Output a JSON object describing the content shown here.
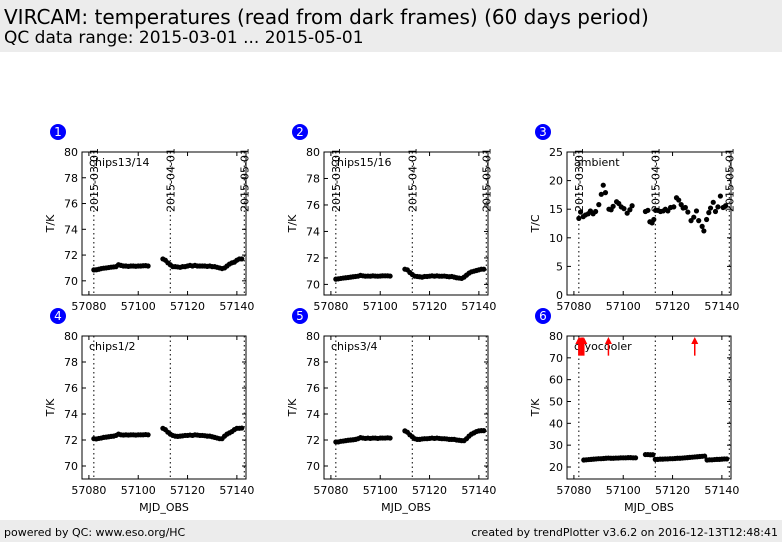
{
  "header": {
    "title": "VIRCAM: temperatures (read from dark frames) (60 days period)",
    "subtitle": "QC data range: 2015-03-01 ... 2015-05-01"
  },
  "footer": {
    "left": "powered by QC: www.eso.org/HC",
    "right": "created by trendPlotter v3.6.2 on 2016-12-13T12:48:41"
  },
  "colors": {
    "badge": "#0000ff",
    "points": "#000000",
    "outlier": "#ff0000",
    "band": "#ececec"
  },
  "date_markers": [
    {
      "label": "2015-03-01",
      "mjd": 57082
    },
    {
      "label": "2015-04-01",
      "mjd": 57113
    },
    {
      "label": "2015-05-01",
      "mjd": 57143
    }
  ],
  "chart_data": [
    {
      "type": "scatter",
      "badge": "1",
      "label": "chips13/14",
      "ylabel": "T/K",
      "xlabel": "",
      "xlim": [
        57077.2,
        57143.7
      ],
      "ylim": [
        68.9,
        80
      ],
      "xticks": [
        "57080",
        "57100",
        "57120",
        "57140"
      ],
      "yticks": [
        "70",
        "72",
        "74",
        "76",
        "78",
        "80"
      ],
      "segments": [
        {
          "x0": 57082,
          "step": 1,
          "y": [
            70.85,
            70.86,
            70.9,
            70.95,
            70.98,
            71.0,
            71.03,
            71.06,
            71.08,
            71.1,
            71.25,
            71.2,
            71.15,
            71.15,
            71.12,
            71.15,
            71.15,
            71.13,
            71.15,
            71.15,
            71.17,
            71.18,
            71.15
          ]
        },
        {
          "x0": 57110,
          "step": 1,
          "y": [
            71.7,
            71.6,
            71.4,
            71.25,
            71.1,
            71.1,
            71.08,
            71.05,
            71.1,
            71.1,
            71.15,
            71.2,
            71.15,
            71.2,
            71.15,
            71.15,
            71.15,
            71.15,
            71.12,
            71.15,
            71.1,
            71.1,
            71.05,
            71.0,
            70.95,
            71.0,
            71.15,
            71.3,
            71.4,
            71.45,
            71.6,
            71.7,
            71.7
          ]
        }
      ],
      "outliers": []
    },
    {
      "type": "scatter",
      "badge": "2",
      "label": "chips15/16",
      "ylabel": "T/K",
      "xlabel": "",
      "xlim": [
        57077.2,
        57143.7
      ],
      "ylim": [
        69.2,
        80
      ],
      "xticks": [
        "57080",
        "57100",
        "57120",
        "57140"
      ],
      "yticks": [
        "70",
        "72",
        "74",
        "76",
        "78",
        "80"
      ],
      "segments": [
        {
          "x0": 57082,
          "step": 1,
          "y": [
            70.4,
            70.42,
            70.45,
            70.48,
            70.5,
            70.52,
            70.55,
            70.58,
            70.6,
            70.62,
            70.68,
            70.65,
            70.62,
            70.63,
            70.62,
            70.65,
            70.63,
            70.62,
            70.63,
            70.65,
            70.65,
            70.65,
            70.63
          ]
        },
        {
          "x0": 57110,
          "step": 1,
          "y": [
            71.15,
            71.1,
            70.9,
            70.75,
            70.62,
            70.6,
            70.58,
            70.55,
            70.6,
            70.6,
            70.62,
            70.65,
            70.62,
            70.65,
            70.62,
            70.62,
            70.63,
            70.6,
            70.58,
            70.6,
            70.55,
            70.5,
            70.48,
            70.45,
            70.55,
            70.7,
            70.85,
            70.95,
            71.0,
            71.05,
            71.1,
            71.15,
            71.15
          ]
        }
      ],
      "outliers": []
    },
    {
      "type": "scatter",
      "badge": "3",
      "label": "ambient",
      "ylabel": "T/C",
      "xlabel": "",
      "xlim": [
        57077.2,
        57143.7
      ],
      "ylim": [
        0,
        25
      ],
      "xticks": [
        "57080",
        "57100",
        "57120",
        "57140"
      ],
      "yticks": [
        "0",
        "5",
        "10",
        "15",
        "20",
        "25"
      ],
      "points": [
        [
          57082,
          13.4
        ],
        [
          57082.7,
          14.5
        ],
        [
          57083.8,
          13.7
        ],
        [
          57084.7,
          14.0
        ],
        [
          57085.8,
          14.2
        ],
        [
          57086.7,
          14.7
        ],
        [
          57087.8,
          14.2
        ],
        [
          57088.8,
          14.6
        ],
        [
          57090.1,
          15.8
        ],
        [
          57091.1,
          17.6
        ],
        [
          57091.9,
          19.2
        ],
        [
          57092.8,
          17.9
        ],
        [
          57094.2,
          15.0
        ],
        [
          57095.1,
          14.9
        ],
        [
          57095.9,
          15.5
        ],
        [
          57097.3,
          16.3
        ],
        [
          57098.2,
          16.0
        ],
        [
          57099.2,
          15.4
        ],
        [
          57100.3,
          15.1
        ],
        [
          57101.6,
          14.3
        ],
        [
          57102.7,
          14.9
        ],
        [
          57103.6,
          15.6
        ],
        [
          57109.0,
          14.6
        ],
        [
          57110.0,
          14.8
        ],
        [
          57110.8,
          12.8
        ],
        [
          57111.7,
          12.6
        ],
        [
          57112.4,
          13.2
        ],
        [
          57113.1,
          14.8
        ],
        [
          57114.0,
          14.8
        ],
        [
          57115.1,
          14.6
        ],
        [
          57116.2,
          14.7
        ],
        [
          57117.1,
          15.0
        ],
        [
          57118.1,
          14.7
        ],
        [
          57119.2,
          15.3
        ],
        [
          57120.5,
          15.4
        ],
        [
          57121.6,
          17.0
        ],
        [
          57122.5,
          16.6
        ],
        [
          57123.5,
          15.8
        ],
        [
          57124.3,
          15.2
        ],
        [
          57125.2,
          15.3
        ],
        [
          57126.2,
          14.5
        ],
        [
          57127.5,
          13.0
        ],
        [
          57128.6,
          13.6
        ],
        [
          57129.7,
          14.7
        ],
        [
          57130.6,
          13.0
        ],
        [
          57132.0,
          12.0
        ],
        [
          57132.7,
          11.2
        ],
        [
          57133.8,
          13.2
        ],
        [
          57134.7,
          14.4
        ],
        [
          57135.4,
          15.2
        ],
        [
          57136.5,
          16.2
        ],
        [
          57137.4,
          14.6
        ],
        [
          57138.4,
          15.4
        ],
        [
          57139.4,
          17.3
        ],
        [
          57140.5,
          15.3
        ],
        [
          57141.5,
          15.6
        ]
      ],
      "outliers": []
    },
    {
      "type": "scatter",
      "badge": "4",
      "label": "chips1/2",
      "ylabel": "T/K",
      "xlabel": "MJD_OBS",
      "xlim": [
        57077.2,
        57143.7
      ],
      "ylim": [
        69.0,
        80
      ],
      "xticks": [
        "57080",
        "57100",
        "57120",
        "57140"
      ],
      "yticks": [
        "70",
        "72",
        "74",
        "76",
        "78",
        "80"
      ],
      "segments": [
        {
          "x0": 57082,
          "step": 1,
          "y": [
            72.1,
            72.08,
            72.12,
            72.15,
            72.2,
            72.22,
            72.25,
            72.28,
            72.3,
            72.35,
            72.45,
            72.4,
            72.38,
            72.4,
            72.38,
            72.4,
            72.4,
            72.38,
            72.4,
            72.4,
            72.4,
            72.42,
            72.4
          ]
        },
        {
          "x0": 57110,
          "step": 1,
          "y": [
            72.9,
            72.8,
            72.6,
            72.45,
            72.35,
            72.3,
            72.28,
            72.3,
            72.32,
            72.35,
            72.35,
            72.38,
            72.35,
            72.4,
            72.38,
            72.35,
            72.35,
            72.33,
            72.3,
            72.3,
            72.25,
            72.2,
            72.15,
            72.1,
            72.1,
            72.3,
            72.45,
            72.55,
            72.65,
            72.8,
            72.9,
            72.9,
            72.92
          ]
        }
      ],
      "outliers": []
    },
    {
      "type": "scatter",
      "badge": "5",
      "label": "chips3/4",
      "ylabel": "T/K",
      "xlabel": "MJD_OBS",
      "xlim": [
        57077.2,
        57143.7
      ],
      "ylim": [
        69.0,
        80
      ],
      "xticks": [
        "57080",
        "57100",
        "57120",
        "57140"
      ],
      "yticks": [
        "70",
        "72",
        "74",
        "76",
        "78",
        "80"
      ],
      "segments": [
        {
          "x0": 57082,
          "step": 1,
          "y": [
            71.85,
            71.85,
            71.9,
            71.92,
            71.95,
            71.98,
            72.0,
            72.02,
            72.05,
            72.1,
            72.18,
            72.15,
            72.12,
            72.15,
            72.12,
            72.15,
            72.15,
            72.12,
            72.15,
            72.15,
            72.15,
            72.17,
            72.15
          ]
        },
        {
          "x0": 57110,
          "step": 1,
          "y": [
            72.7,
            72.6,
            72.4,
            72.25,
            72.1,
            72.05,
            72.05,
            72.08,
            72.1,
            72.1,
            72.12,
            72.15,
            72.12,
            72.15,
            72.12,
            72.1,
            72.1,
            72.08,
            72.05,
            72.05,
            72.05,
            72.0,
            71.98,
            71.95,
            71.95,
            72.1,
            72.3,
            72.45,
            72.55,
            72.65,
            72.7,
            72.72,
            72.72
          ]
        }
      ],
      "outliers": []
    },
    {
      "type": "scatter",
      "badge": "6",
      "label": "cryocooler",
      "ylabel": "T/K",
      "xlabel": "MJD_OBS",
      "xlim": [
        57077.2,
        57143.7
      ],
      "ylim": [
        14.5,
        80
      ],
      "xticks": [
        "57080",
        "57100",
        "57120",
        "57140"
      ],
      "yticks": [
        "20",
        "30",
        "40",
        "50",
        "60",
        "70",
        "80"
      ],
      "segments": [
        {
          "x0": 57084,
          "step": 1,
          "y": [
            23.2,
            23.3,
            23.4,
            23.5,
            23.6,
            23.7,
            23.8,
            23.8,
            23.9,
            24.0,
            24.1,
            24.0,
            24.0,
            24.1,
            24.1,
            24.2,
            24.2,
            24.2,
            24.3,
            24.3,
            24.2,
            24.2
          ]
        },
        {
          "x0": 57109,
          "step": 1,
          "y": [
            25.7,
            25.7,
            25.6,
            25.6
          ]
        },
        {
          "x0": 57113,
          "step": 1,
          "y": [
            23.5,
            23.5,
            23.6,
            23.6,
            23.7,
            23.7,
            23.8,
            23.8,
            23.9,
            24.0,
            24.0,
            24.1,
            24.2,
            24.3,
            24.4,
            24.5,
            24.6,
            24.7,
            24.8,
            24.9,
            25.0
          ]
        },
        {
          "x0": 57134,
          "step": 1,
          "y": [
            23.2,
            23.3,
            23.3,
            23.4,
            23.5,
            23.5,
            23.6,
            23.7,
            23.7
          ]
        }
      ],
      "outliers": [
        57082,
        57082.5,
        57083,
        57083.5,
        57084,
        57094,
        57129
      ]
    }
  ]
}
